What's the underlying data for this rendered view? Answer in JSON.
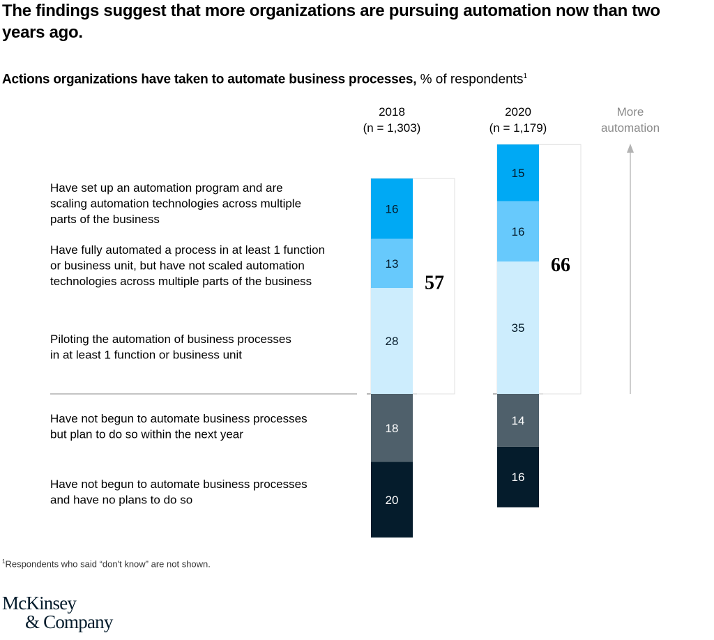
{
  "title": "The findings suggest that more organizations are pursuing automation now than two years ago.",
  "subtitle": {
    "bold": "Actions organizations have taken to automate business processes,",
    "regular": " % of respondents",
    "footnote_marker": "1"
  },
  "footnote": {
    "marker": "1",
    "text": "Respondents who said “don't know” are not shown."
  },
  "logo": {
    "line1": "McKinsey",
    "line2": "& Company"
  },
  "chart_data": {
    "type": "bar",
    "stacked": true,
    "diverging": true,
    "title": "Actions organizations have taken to automate business processes, % of respondents",
    "categories": [
      "2018",
      "2020"
    ],
    "category_sublabels": [
      "(n = 1,303)",
      "(n = 1,179)"
    ],
    "series": [
      {
        "name": "Have set up an automation program and are scaling automation technologies across multiple parts of the business",
        "label_lines": [
          "Have set up an automation program and are",
          "scaling automation technologies across multiple",
          "parts of the business"
        ],
        "values": [
          16,
          15
        ],
        "color": "#00a9f4",
        "text_color": "#051c2c",
        "direction": "up"
      },
      {
        "name": "Have fully automated a process in at least 1 function or business unit, but have not scaled automation technologies across multiple parts of the business",
        "label_lines": [
          "Have fully automated a process in at least 1 function",
          "or business unit, but have not scaled automation",
          "technologies across multiple parts of the business"
        ],
        "values": [
          13,
          16
        ],
        "color": "#67c9fc",
        "text_color": "#051c2c",
        "direction": "up"
      },
      {
        "name": "Piloting the automation of business processes in at least 1 function or business unit",
        "label_lines": [
          "Piloting the automation of business processes",
          "in at least 1 function or business unit"
        ],
        "values": [
          28,
          35
        ],
        "color": "#cdedfd",
        "text_color": "#051c2c",
        "direction": "up"
      },
      {
        "name": "Have not begun to automate business processes but plan to do so within the next year",
        "label_lines": [
          "Have not begun to automate business processes",
          "but plan to do so within the next year"
        ],
        "values": [
          18,
          14
        ],
        "color": "#4f606b",
        "text_color": "#ffffff",
        "direction": "down"
      },
      {
        "name": "Have not begun to automate business processes and have no plans to do so",
        "label_lines": [
          "Have not begun to automate business processes",
          "and have no plans to do so"
        ],
        "values": [
          20,
          16
        ],
        "color": "#051c2c",
        "text_color": "#ffffff",
        "direction": "down"
      }
    ],
    "totals": [
      57,
      66
    ],
    "arrow_label": [
      "More",
      "automation"
    ],
    "legend": "left",
    "grid": false
  }
}
